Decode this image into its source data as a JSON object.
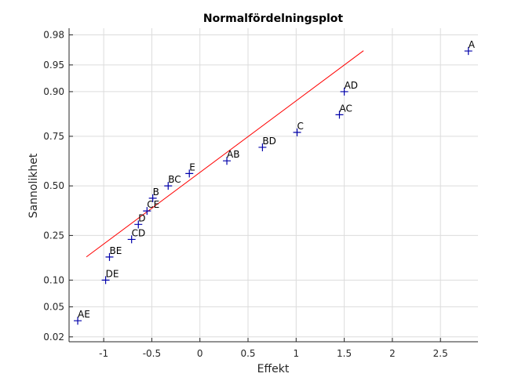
{
  "chart_data": {
    "type": "scatter",
    "title": "Normalfördelningsplot",
    "xlabel": "Effekt",
    "ylabel": "Sannolikhet",
    "xlim": [
      -1.36,
      2.89
    ],
    "ylim": [
      0.017,
      0.984
    ],
    "yscale": "normal-probability",
    "grid": true,
    "xticks": [
      -1,
      -0.5,
      0,
      0.5,
      1,
      1.5,
      2,
      2.5
    ],
    "xtick_labels": [
      "-1",
      "-0.5",
      "0",
      "0.5",
      "1",
      "1.5",
      "2",
      "2.5"
    ],
    "yticks": [
      0.02,
      0.05,
      0.1,
      0.25,
      0.5,
      0.75,
      0.9,
      0.95,
      0.98
    ],
    "ytick_labels": [
      "0.02",
      "0.05",
      "0.10",
      "0.25",
      "0.50",
      "0.75",
      "0.90",
      "0.95",
      "0.98"
    ],
    "points": [
      {
        "label": "AE",
        "x": -1.27,
        "p": 0.0333
      },
      {
        "label": "DE",
        "x": -0.98,
        "p": 0.1
      },
      {
        "label": "BE",
        "x": -0.94,
        "p": 0.1667
      },
      {
        "label": "CD",
        "x": -0.71,
        "p": 0.2333
      },
      {
        "label": "D",
        "x": -0.64,
        "p": 0.3
      },
      {
        "label": "CE",
        "x": -0.55,
        "p": 0.3667
      },
      {
        "label": "B",
        "x": -0.49,
        "p": 0.4333
      },
      {
        "label": "BC",
        "x": -0.33,
        "p": 0.5
      },
      {
        "label": "E",
        "x": -0.11,
        "p": 0.5667
      },
      {
        "label": "AB",
        "x": 0.28,
        "p": 0.6333
      },
      {
        "label": "BD",
        "x": 0.65,
        "p": 0.7
      },
      {
        "label": "C",
        "x": 1.01,
        "p": 0.7667
      },
      {
        "label": "AC",
        "x": 1.45,
        "p": 0.8333
      },
      {
        "label": "AD",
        "x": 1.5,
        "p": 0.9
      },
      {
        "label": "A",
        "x": 2.79,
        "p": 0.9667
      }
    ],
    "reference_line": {
      "x": [
        -1.18,
        1.7
      ],
      "p": [
        0.167,
        0.967
      ]
    },
    "colors": {
      "marker": "#0000aa",
      "line": "#ff0000",
      "grid": "#dcdcdc",
      "axis": "#262626"
    }
  }
}
